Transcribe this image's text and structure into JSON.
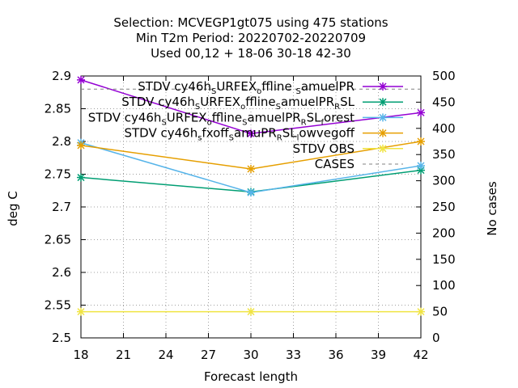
{
  "chart_data": {
    "type": "line",
    "title_lines": [
      "Selection: MCVEGP1gt075 using   475 stations",
      "Min T2m   Period: 20220702-20220709",
      "Used  00,12  + 18-06 30-18 42-30"
    ],
    "xlabel": "Forecast length",
    "ylabel": "deg C",
    "y2label": "No cases",
    "x": [
      18,
      30,
      42
    ],
    "xlim": [
      18,
      42
    ],
    "xticks": [
      "18",
      "21",
      "24",
      "27",
      "30",
      "33",
      "36",
      "39",
      "42"
    ],
    "ylim": [
      2.5,
      2.9
    ],
    "yticks": [
      "2.5",
      "2.55",
      "2.6",
      "2.65",
      "2.7",
      "2.75",
      "2.8",
      "2.85",
      "2.9"
    ],
    "y2lim": [
      0,
      500
    ],
    "y2ticks": [
      "0",
      "50",
      "100",
      "150",
      "200",
      "250",
      "300",
      "350",
      "400",
      "450",
      "500"
    ],
    "grid": true,
    "legend_position": "top-right",
    "series": [
      {
        "name_parts": [
          [
            "STDV cy46h",
            ""
          ],
          [
            "S",
            "sub"
          ],
          [
            "URFEX",
            ""
          ],
          [
            "o",
            "sub"
          ],
          [
            "ffline ",
            ""
          ],
          [
            "S",
            "sub"
          ],
          [
            "amuelPR",
            ""
          ]
        ],
        "color": "#9400d3",
        "marker": "x",
        "axis": "y",
        "values": [
          2.894,
          2.812,
          2.844
        ]
      },
      {
        "name_parts": [
          [
            "STDV cy46h",
            ""
          ],
          [
            "S",
            "sub"
          ],
          [
            "URFEX",
            ""
          ],
          [
            "o",
            "sub"
          ],
          [
            "ffline",
            ""
          ],
          [
            "S",
            "sub"
          ],
          [
            "amuelPR",
            ""
          ],
          [
            "R",
            "sub"
          ],
          [
            "SL",
            ""
          ]
        ],
        "color": "#009e73",
        "marker": "x",
        "axis": "y",
        "values": [
          2.745,
          2.723,
          2.756
        ]
      },
      {
        "name_parts": [
          [
            "STDV cy46h",
            ""
          ],
          [
            "S",
            "sub"
          ],
          [
            "URFEX",
            ""
          ],
          [
            "o",
            "sub"
          ],
          [
            "ffline",
            ""
          ],
          [
            "S",
            "sub"
          ],
          [
            "amuelPR",
            ""
          ],
          [
            "R",
            "sub"
          ],
          [
            "SL",
            ""
          ],
          [
            "f",
            "sub"
          ],
          [
            "orest",
            ""
          ]
        ],
        "color": "#56b4e9",
        "marker": "x",
        "axis": "y",
        "values": [
          2.798,
          2.722,
          2.763
        ]
      },
      {
        "name_parts": [
          [
            "STDV cy46h",
            ""
          ],
          [
            "s",
            "sub"
          ],
          [
            "fxoff",
            ""
          ],
          [
            "S",
            "sub"
          ],
          [
            "amuPR",
            ""
          ],
          [
            "R",
            "sub"
          ],
          [
            "SL",
            ""
          ],
          [
            "l",
            "sub"
          ],
          [
            "owvegoff",
            ""
          ]
        ],
        "color": "#e69f00",
        "marker": "x",
        "axis": "y",
        "values": [
          2.794,
          2.758,
          2.8
        ]
      },
      {
        "name_parts": [
          [
            "STDV OBS",
            ""
          ]
        ],
        "color": "#f0e442",
        "marker": "x",
        "axis": "y",
        "values": [
          2.54,
          2.54,
          2.54
        ]
      },
      {
        "name_parts": [
          [
            "CASES",
            ""
          ]
        ],
        "color": "#808080",
        "marker": "none",
        "axis": "y2",
        "dash": true,
        "values": [
          475,
          475,
          475
        ]
      }
    ]
  }
}
